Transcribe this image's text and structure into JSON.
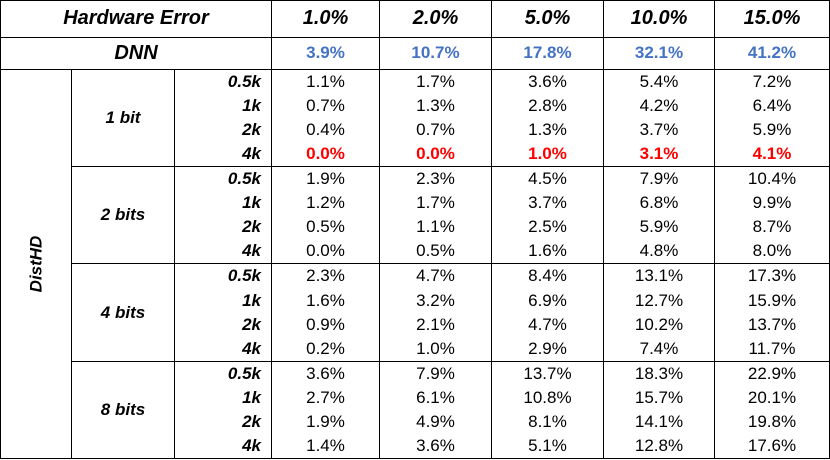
{
  "header": {
    "title": "Hardware Error",
    "rates": [
      "1.0%",
      "2.0%",
      "5.0%",
      "10.0%",
      "15.0%"
    ]
  },
  "dnn": {
    "label": "DNN",
    "values": [
      "3.9%",
      "10.7%",
      "17.8%",
      "32.1%",
      "41.2%"
    ],
    "color": "#4472c4"
  },
  "disthd": {
    "label": "DistHD",
    "highlight_color": "#ff0000",
    "groups": [
      {
        "label": "1 bit",
        "rows": [
          {
            "size": "0.5k",
            "values": [
              "1.1%",
              "1.7%",
              "3.6%",
              "5.4%",
              "7.2%"
            ],
            "highlight": false
          },
          {
            "size": "1k",
            "values": [
              "0.7%",
              "1.3%",
              "2.8%",
              "4.2%",
              "6.4%"
            ],
            "highlight": false
          },
          {
            "size": "2k",
            "values": [
              "0.4%",
              "0.7%",
              "1.3%",
              "3.7%",
              "5.9%"
            ],
            "highlight": false
          },
          {
            "size": "4k",
            "values": [
              "0.0%",
              "0.0%",
              "1.0%",
              "3.1%",
              "4.1%"
            ],
            "highlight": true
          }
        ]
      },
      {
        "label": "2 bits",
        "rows": [
          {
            "size": "0.5k",
            "values": [
              "1.9%",
              "2.3%",
              "4.5%",
              "7.9%",
              "10.4%"
            ],
            "highlight": false
          },
          {
            "size": "1k",
            "values": [
              "1.2%",
              "1.7%",
              "3.7%",
              "6.8%",
              "9.9%"
            ],
            "highlight": false
          },
          {
            "size": "2k",
            "values": [
              "0.5%",
              "1.1%",
              "2.5%",
              "5.9%",
              "8.7%"
            ],
            "highlight": false
          },
          {
            "size": "4k",
            "values": [
              "0.0%",
              "0.5%",
              "1.6%",
              "4.8%",
              "8.0%"
            ],
            "highlight": false
          }
        ]
      },
      {
        "label": "4 bits",
        "rows": [
          {
            "size": "0.5k",
            "values": [
              "2.3%",
              "4.7%",
              "8.4%",
              "13.1%",
              "17.3%"
            ],
            "highlight": false
          },
          {
            "size": "1k",
            "values": [
              "1.6%",
              "3.2%",
              "6.9%",
              "12.7%",
              "15.9%"
            ],
            "highlight": false
          },
          {
            "size": "2k",
            "values": [
              "0.9%",
              "2.1%",
              "4.7%",
              "10.2%",
              "13.7%"
            ],
            "highlight": false
          },
          {
            "size": "4k",
            "values": [
              "0.2%",
              "1.0%",
              "2.9%",
              "7.4%",
              "11.7%"
            ],
            "highlight": false
          }
        ]
      },
      {
        "label": "8 bits",
        "rows": [
          {
            "size": "0.5k",
            "values": [
              "3.6%",
              "7.9%",
              "13.7%",
              "18.3%",
              "22.9%"
            ],
            "highlight": false
          },
          {
            "size": "1k",
            "values": [
              "2.7%",
              "6.1%",
              "10.8%",
              "15.7%",
              "20.1%"
            ],
            "highlight": false
          },
          {
            "size": "2k",
            "values": [
              "1.9%",
              "4.9%",
              "8.1%",
              "14.1%",
              "19.8%"
            ],
            "highlight": false
          },
          {
            "size": "4k",
            "values": [
              "1.4%",
              "3.6%",
              "5.1%",
              "12.8%",
              "17.6%"
            ],
            "highlight": false
          }
        ]
      }
    ]
  }
}
